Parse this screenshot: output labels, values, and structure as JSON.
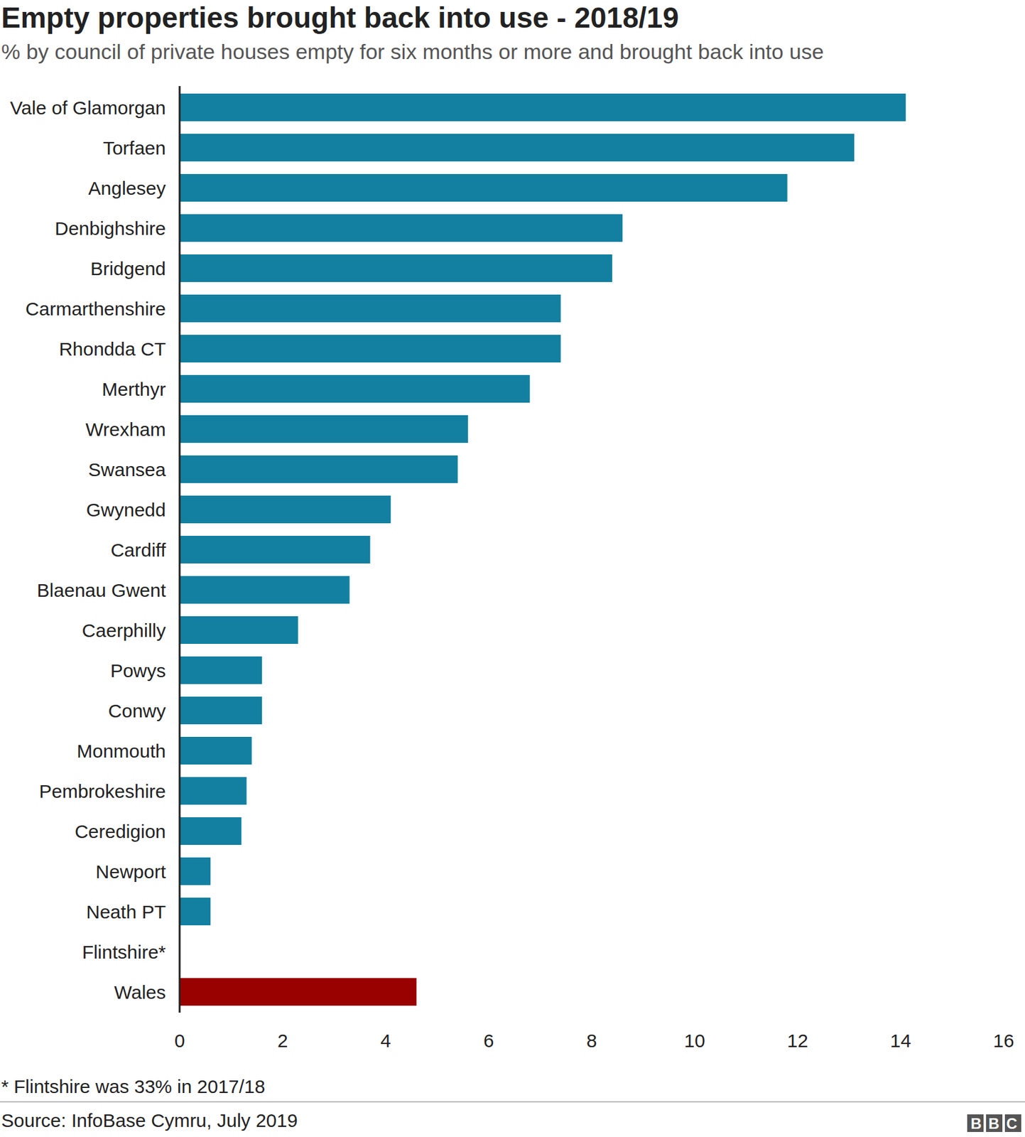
{
  "chart_data": {
    "type": "bar",
    "orientation": "horizontal",
    "title": "Empty properties brought back into use - 2018/19",
    "subtitle": "% by council of private houses empty for six months or more and brought back into use",
    "categories": [
      "Vale of Glamorgan",
      "Torfaen",
      "Anglesey",
      "Denbighshire",
      "Bridgend",
      "Carmarthenshire",
      "Rhondda CT",
      "Merthyr",
      "Wrexham",
      "Swansea",
      "Gwynedd",
      "Cardiff",
      "Blaenau Gwent",
      "Caerphilly",
      "Powys",
      "Conwy",
      "Monmouth",
      "Pembrokeshire",
      "Ceredigion",
      "Newport",
      "Neath PT",
      "Flintshire*",
      "Wales"
    ],
    "values": [
      14.1,
      13.1,
      11.8,
      8.6,
      8.4,
      7.4,
      7.4,
      6.8,
      5.6,
      5.4,
      4.1,
      3.7,
      3.3,
      2.3,
      1.6,
      1.6,
      1.4,
      1.3,
      1.2,
      0.6,
      0.6,
      0,
      4.6
    ],
    "colors": [
      "#1380a1",
      "#1380a1",
      "#1380a1",
      "#1380a1",
      "#1380a1",
      "#1380a1",
      "#1380a1",
      "#1380a1",
      "#1380a1",
      "#1380a1",
      "#1380a1",
      "#1380a1",
      "#1380a1",
      "#1380a1",
      "#1380a1",
      "#1380a1",
      "#1380a1",
      "#1380a1",
      "#1380a1",
      "#1380a1",
      "#1380a1",
      "#1380a1",
      "#990000"
    ],
    "xlim": [
      0,
      16
    ],
    "xticks": [
      0,
      2,
      4,
      6,
      8,
      10,
      12,
      14,
      16
    ],
    "grid": false,
    "footnote": "* Flintshire was 33% in 2017/18",
    "source": "Source: InfoBase Cymru, July 2019",
    "logo": "BBC"
  }
}
